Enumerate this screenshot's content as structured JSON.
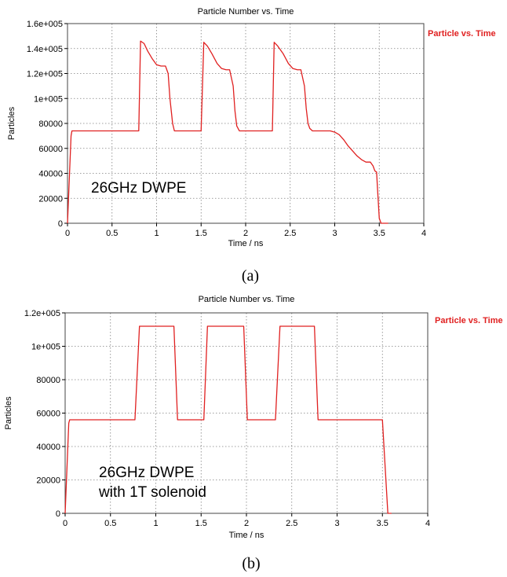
{
  "colors": {
    "series": "#e02020",
    "grid": "#808080",
    "frame": "#444444"
  },
  "chart_data": [
    {
      "type": "line",
      "title": "Particle Number vs. Time",
      "xlabel": "Time / ns",
      "ylabel": "Particles",
      "legend": "Particle vs. Time",
      "legend_position": "right",
      "annotation": [
        "26GHz DWPE"
      ],
      "caption": "(a)",
      "xlim": [
        0,
        4
      ],
      "ylim": [
        0,
        160000
      ],
      "xticks": [
        0,
        0.5,
        1,
        1.5,
        2,
        2.5,
        3,
        3.5,
        4
      ],
      "xtick_labels": [
        "0",
        "0.5",
        "1",
        "1.5",
        "2",
        "2.5",
        "3",
        "3.5",
        "4"
      ],
      "yticks": [
        0,
        20000,
        40000,
        60000,
        80000,
        100000,
        120000,
        140000,
        160000
      ],
      "ytick_labels": [
        "0",
        "20000",
        "40000",
        "60000",
        "80000",
        "1e+005",
        "1.2e+005",
        "1.4e+005",
        "1.6e+005"
      ],
      "grid": true,
      "series": [
        {
          "name": "Particle vs. Time",
          "x": [
            0,
            0.04,
            0.05,
            0.8,
            0.82,
            0.86,
            0.9,
            0.95,
            1.0,
            1.05,
            1.1,
            1.13,
            1.15,
            1.18,
            1.2,
            1.5,
            1.53,
            1.57,
            1.62,
            1.68,
            1.73,
            1.78,
            1.82,
            1.86,
            1.88,
            1.9,
            1.93,
            1.96,
            2.3,
            2.32,
            2.36,
            2.42,
            2.48,
            2.53,
            2.58,
            2.62,
            2.66,
            2.68,
            2.7,
            2.72,
            2.75,
            2.95,
            3.0,
            3.05,
            3.1,
            3.15,
            3.2,
            3.25,
            3.3,
            3.35,
            3.4,
            3.43,
            3.45,
            3.47,
            3.48,
            3.5,
            3.52,
            3.6
          ],
          "y": [
            0,
            70000,
            74000,
            74000,
            146000,
            144000,
            138000,
            132000,
            127000,
            126000,
            126000,
            120000,
            100000,
            80000,
            74000,
            74000,
            145000,
            142000,
            136000,
            128000,
            124000,
            123000,
            123000,
            110000,
            90000,
            78000,
            74000,
            74000,
            74000,
            145000,
            142000,
            136000,
            128000,
            124000,
            123000,
            123000,
            110000,
            92000,
            80000,
            76000,
            74000,
            74000,
            73000,
            71000,
            67000,
            62000,
            58000,
            54000,
            51000,
            49000,
            49000,
            46000,
            42000,
            41000,
            28000,
            4000,
            0,
            0
          ]
        }
      ]
    },
    {
      "type": "line",
      "title": "Particle Number vs. Time",
      "xlabel": "Time / ns",
      "ylabel": "Particles",
      "legend": "Particle vs. Time",
      "legend_position": "right",
      "annotation": [
        "26GHz DWPE",
        "with 1T solenoid"
      ],
      "caption": "(b)",
      "xlim": [
        0,
        4
      ],
      "ylim": [
        0,
        120000
      ],
      "xticks": [
        0,
        0.5,
        1,
        1.5,
        2,
        2.5,
        3,
        3.5,
        4
      ],
      "xtick_labels": [
        "0",
        "0.5",
        "1",
        "1.5",
        "2",
        "2.5",
        "3",
        "3.5",
        "4"
      ],
      "yticks": [
        0,
        20000,
        40000,
        60000,
        80000,
        100000,
        120000
      ],
      "ytick_labels": [
        "0",
        "20000",
        "40000",
        "60000",
        "80000",
        "1e+005",
        "1.2e+005"
      ],
      "grid": true,
      "series": [
        {
          "name": "Particle vs. Time",
          "x": [
            0,
            0.04,
            0.05,
            0.77,
            0.82,
            1.2,
            1.24,
            1.53,
            1.57,
            1.97,
            2.01,
            2.32,
            2.37,
            2.75,
            2.79,
            3.5,
            3.56,
            3.6
          ],
          "y": [
            0,
            54000,
            56000,
            56000,
            112000,
            112000,
            56000,
            56000,
            112000,
            112000,
            56000,
            56000,
            112000,
            112000,
            56000,
            56000,
            0,
            0
          ]
        }
      ]
    }
  ]
}
